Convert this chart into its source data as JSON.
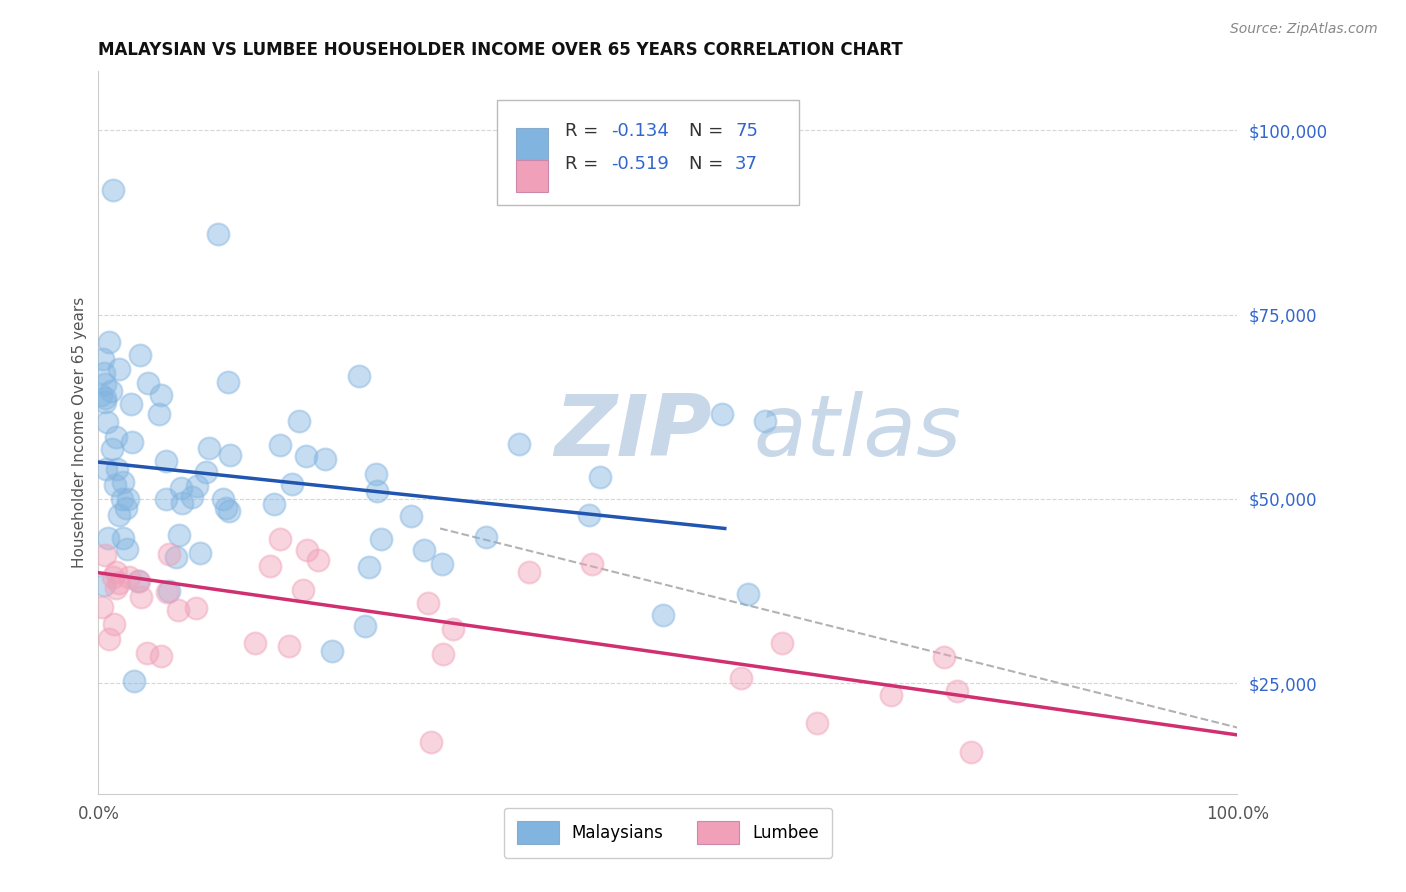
{
  "title": "MALAYSIAN VS LUMBEE HOUSEHOLDER INCOME OVER 65 YEARS CORRELATION CHART",
  "source": "Source: ZipAtlas.com",
  "ylabel": "Householder Income Over 65 years",
  "xlim": [
    0,
    100
  ],
  "ylim": [
    10000,
    108000
  ],
  "yticks": [
    25000,
    50000,
    75000,
    100000
  ],
  "ytick_labels": [
    "$25,000",
    "$50,000",
    "$75,000",
    "$100,000"
  ],
  "r_malay": "-0.134",
  "n_malay": "75",
  "r_lumbee": "-0.519",
  "n_lumbee": "37",
  "malaysian_color": "#82b4e0",
  "lumbee_color": "#f0a0b8",
  "blue_line_color": "#2255b0",
  "pink_line_color": "#d03070",
  "gray_line_color": "#aaaaaa",
  "watermark_zip": "ZIP",
  "watermark_atlas": "atlas",
  "text_blue": "#3366cc",
  "text_dark": "#333333",
  "legend_entries": [
    "Malaysians",
    "Lumbee"
  ],
  "blue_line_x0": 0,
  "blue_line_y0": 55000,
  "blue_line_x1": 55,
  "blue_line_y1": 46000,
  "pink_line_x0": 0,
  "pink_line_y0": 40000,
  "pink_line_x1": 100,
  "pink_line_y1": 18000,
  "gray_line_x0": 30,
  "gray_line_y0": 46000,
  "gray_line_x1": 100,
  "gray_line_y1": 19000
}
